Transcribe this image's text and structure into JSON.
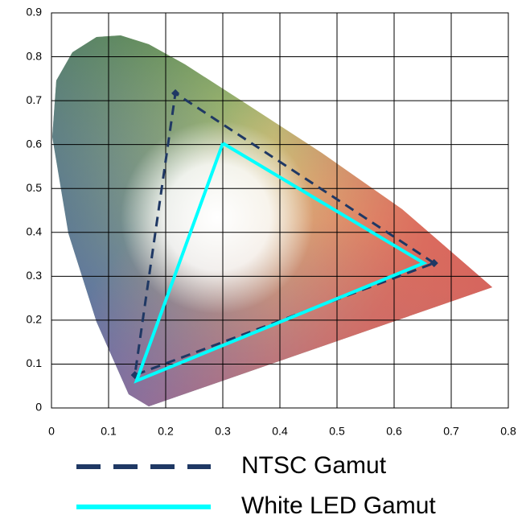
{
  "chart_data": {
    "type": "line",
    "xlim": [
      0,
      0.8
    ],
    "xticks": [
      0,
      0.1,
      0.2,
      0.3,
      0.4,
      0.5,
      0.6,
      0.7,
      0.8
    ],
    "ylim": [
      0,
      0.9
    ],
    "yticks": [
      0,
      0.1,
      0.2,
      0.3,
      0.4,
      0.5,
      0.6,
      0.7,
      0.8,
      0.9
    ],
    "grid": true,
    "series": [
      {
        "name": "NTSC Gamut",
        "color": "#1f3864",
        "dashed": true,
        "markers": true,
        "x": [
          0.67,
          0.217,
          0.146,
          0.67
        ],
        "values": [
          0.33,
          0.717,
          0.075,
          0.33
        ]
      },
      {
        "name": "White LED Gamut",
        "color": "#00ffff",
        "dashed": false,
        "markers": false,
        "x": [
          0.3,
          0.652,
          0.149,
          0.3
        ],
        "values": [
          0.603,
          0.33,
          0.062,
          0.603
        ]
      }
    ]
  }
}
